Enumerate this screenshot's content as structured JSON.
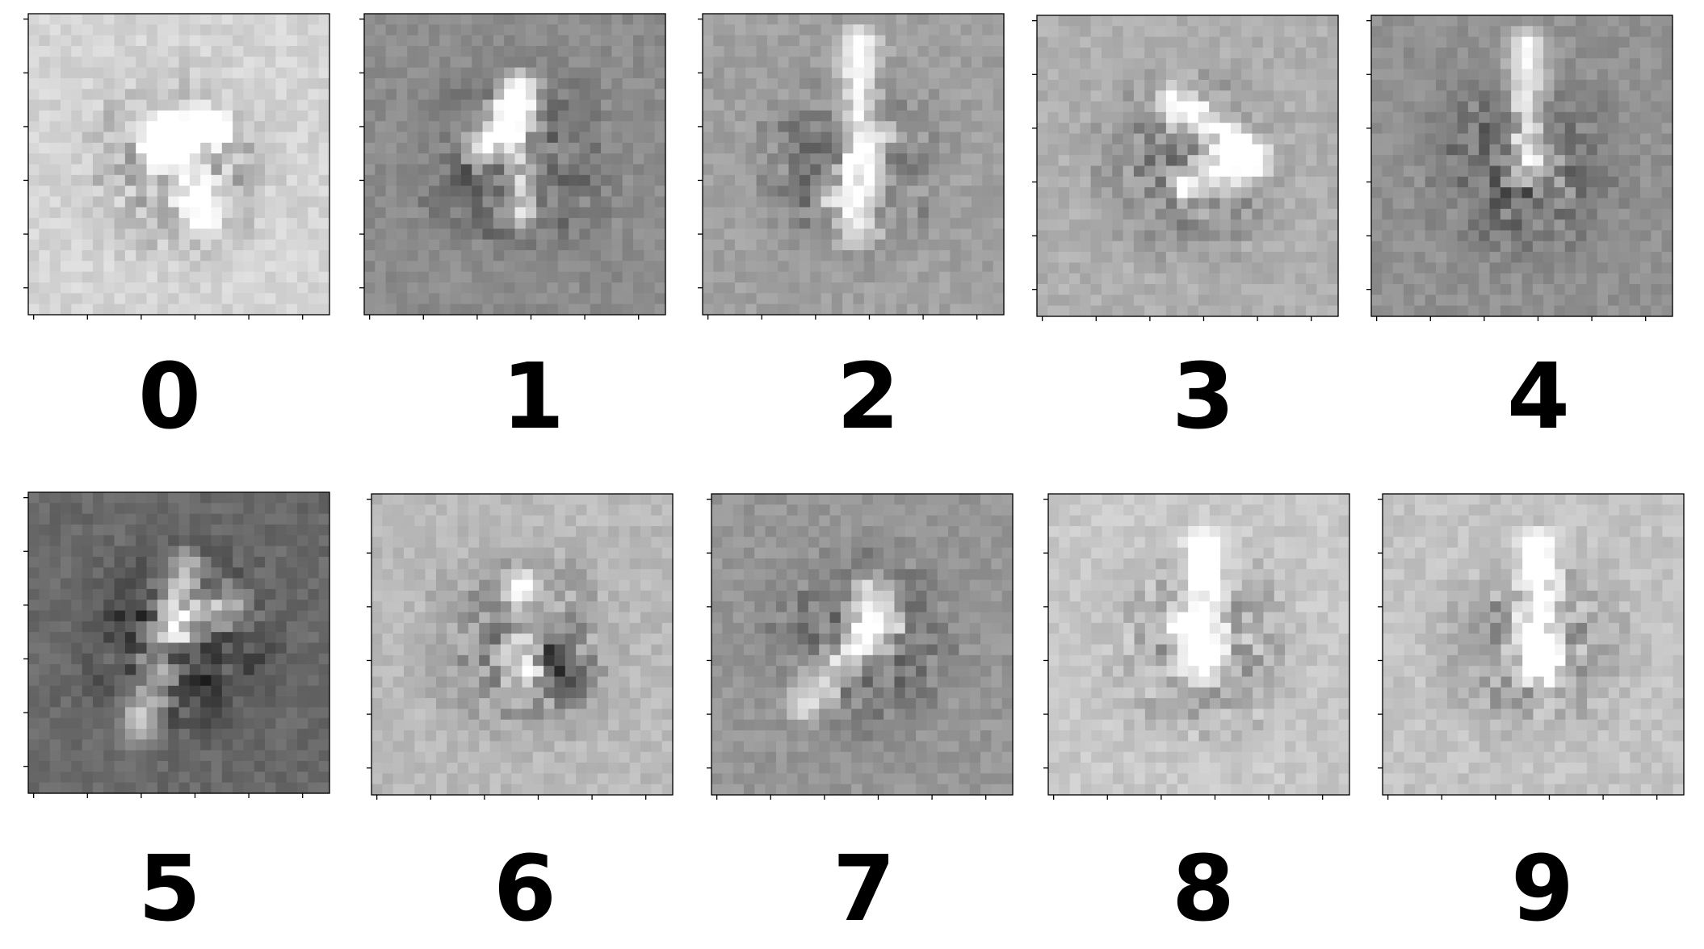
{
  "chart_data": {
    "type": "heatmap",
    "description_of_grid": "10 grayscale 28x28 weight visualizations arranged 2 rows x 5 columns",
    "colormap": "gray",
    "grid": false,
    "labels": [
      "0",
      "1",
      "2",
      "3",
      "4",
      "5",
      "6",
      "7",
      "8",
      "9"
    ],
    "ticks": "unlabeled tick marks on left and bottom axes",
    "pixel_resolution": [
      28,
      28
    ]
  }
}
